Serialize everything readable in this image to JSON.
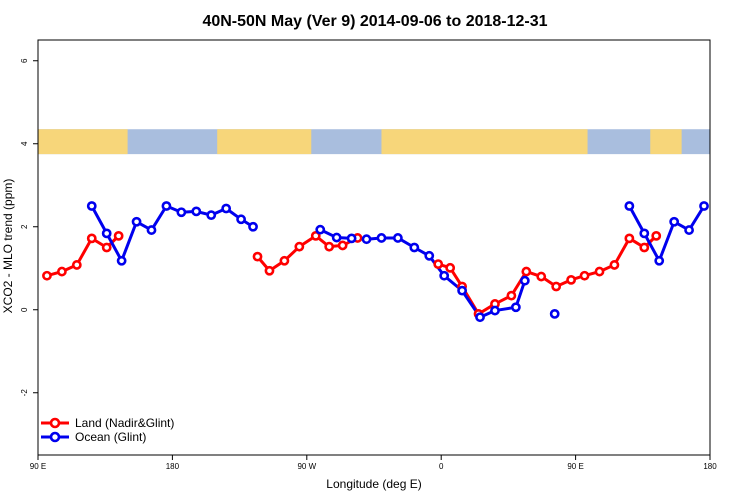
{
  "chart_data": {
    "type": "line",
    "title": "40N-50N May (Ver 9)   2014-09-06 to 2018-12-31",
    "xlabel": "Longitude (deg E)",
    "ylabel": "XCO2 - MLO trend (ppm)",
    "xlim": [
      90,
      540
    ],
    "ylim": [
      -3.5,
      6.5
    ],
    "x_ticks": [
      {
        "value": 90,
        "label": "90 E"
      },
      {
        "value": 180,
        "label": "180"
      },
      {
        "value": 270,
        "label": "90 W"
      },
      {
        "value": 360,
        "label": "0"
      },
      {
        "value": 450,
        "label": "90 E"
      },
      {
        "value": 540,
        "label": "180"
      }
    ],
    "y_ticks": [
      {
        "value": -2,
        "label": "-2"
      },
      {
        "value": 0,
        "label": "0"
      },
      {
        "value": 2,
        "label": "2"
      },
      {
        "value": 4,
        "label": "4"
      },
      {
        "value": 6,
        "label": "6"
      }
    ],
    "map_band": {
      "ymin": 3.75,
      "ymax": 4.35,
      "land_color": "#f7d67a",
      "ocean_color": "#a9bede"
    },
    "legend_position": "bottom-left",
    "grid": false,
    "series": [
      {
        "name": "Land (Nadir&Glint)",
        "color": "#ff0000",
        "segments": [
          [
            [
              96,
              0.82
            ],
            [
              106,
              0.92
            ],
            [
              116,
              1.08
            ],
            [
              126,
              1.72
            ],
            [
              136,
              1.5
            ],
            [
              144,
              1.78
            ]
          ],
          [
            [
              237,
              1.28
            ],
            [
              245,
              0.94
            ],
            [
              255,
              1.18
            ],
            [
              265,
              1.52
            ],
            [
              276,
              1.78
            ],
            [
              285,
              1.52
            ],
            [
              294,
              1.55
            ],
            [
              304,
              1.73
            ]
          ],
          [
            [
              358,
              1.1
            ],
            [
              366,
              1.01
            ],
            [
              374,
              0.56
            ],
            [
              385,
              -0.1
            ],
            [
              396,
              0.14
            ],
            [
              407,
              0.34
            ],
            [
              417,
              0.92
            ],
            [
              427,
              0.8
            ],
            [
              437,
              0.56
            ],
            [
              447,
              0.72
            ],
            [
              456,
              0.82
            ],
            [
              466,
              0.92
            ],
            [
              476,
              1.08
            ],
            [
              486,
              1.72
            ],
            [
              496,
              1.5
            ],
            [
              504,
              1.78
            ]
          ]
        ]
      },
      {
        "name": "Ocean (Glint)",
        "color": "#0000ee",
        "segments": [
          [
            [
              126,
              2.5
            ],
            [
              136,
              1.84
            ],
            [
              146,
              1.18
            ],
            [
              156,
              2.12
            ],
            [
              166,
              1.92
            ],
            [
              176,
              2.5
            ],
            [
              186,
              2.35
            ],
            [
              196,
              2.37
            ],
            [
              206,
              2.28
            ],
            [
              216,
              2.44
            ],
            [
              226,
              2.18
            ],
            [
              234,
              2.0
            ]
          ],
          [
            [
              279,
              1.93
            ],
            [
              290,
              1.74
            ],
            [
              300,
              1.72
            ],
            [
              310,
              1.7
            ],
            [
              320,
              1.73
            ],
            [
              331,
              1.73
            ],
            [
              342,
              1.5
            ],
            [
              352,
              1.3
            ],
            [
              362,
              0.82
            ],
            [
              374,
              0.46
            ],
            [
              386,
              -0.18
            ],
            [
              396,
              -0.02
            ],
            [
              410,
              0.06
            ],
            [
              416,
              0.7
            ]
          ],
          [
            [
              436,
              -0.1
            ]
          ],
          [
            [
              486,
              2.5
            ],
            [
              496,
              1.84
            ],
            [
              506,
              1.18
            ],
            [
              516,
              2.12
            ],
            [
              526,
              1.92
            ],
            [
              536,
              2.5
            ]
          ]
        ]
      }
    ]
  }
}
